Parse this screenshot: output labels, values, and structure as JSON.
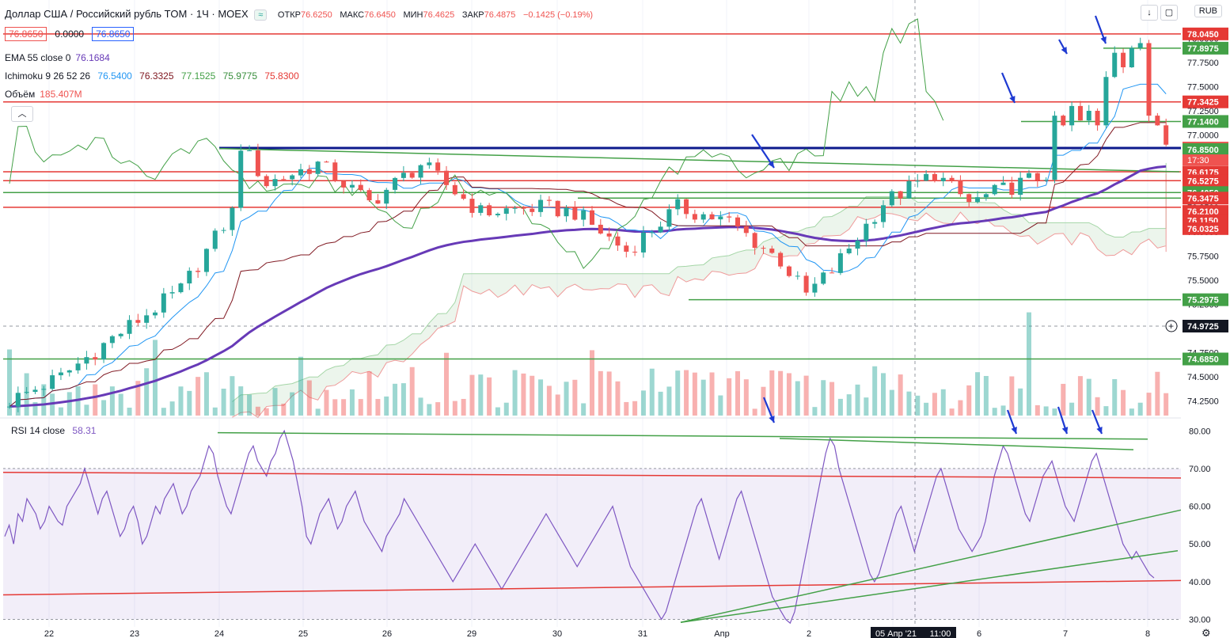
{
  "header": {
    "title": "Доллар США / Российский рубль TOM · 1Ч · MOEX",
    "pill": "≈",
    "open_label": "ОТКР",
    "open": "76.6250",
    "high_label": "МАКС",
    "high": "76.6450",
    "low_label": "МИН",
    "low": "76.4625",
    "close_label": "ЗАКР",
    "close": "76.4875",
    "change": "−0.1425 (−0.19%)"
  },
  "boxes": {
    "bid": "76.8650",
    "spread": "0.0000",
    "ask": "76.8650"
  },
  "indicators": {
    "ema_name": "EMA 55 close 0",
    "ema_value": "76.1684",
    "ichimoku_name": "Ichimoku 9 26 52 26",
    "ichimoku_values": [
      "76.5400",
      "76.3325",
      "77.1525",
      "75.9775",
      "75.8300"
    ],
    "volume_name": "Объём",
    "volume_value": "185.407M"
  },
  "rsi": {
    "name": "RSI 14 close",
    "value": "58.31"
  },
  "currency": "RUB",
  "collapse_icon": "chevron-up-icon",
  "colors": {
    "up": "#26a69a",
    "down": "#ef5350",
    "ema": "#673ab7",
    "rsi": "#7e57c2",
    "arrow": "#1e3ad2",
    "support": "#43a047",
    "resistance": "#e53935",
    "hline": "#0d1a8c"
  },
  "chart_data": [
    {
      "type": "candlestick",
      "price_axis": {
        "ylim": [
          74.1,
          78.15
        ],
        "ticks": [
          "78.0000",
          "77.7500",
          "77.5000",
          "77.2500",
          "77.0000",
          "76.7500",
          "76.5000",
          "76.2500",
          "76.0000",
          "75.7500",
          "75.5000",
          "75.2500",
          "74.7500",
          "74.5000",
          "74.2500"
        ]
      },
      "time_axis": {
        "labels": [
          "22",
          "23",
          "24",
          "25",
          "26",
          "29",
          "30",
          "31",
          "Апр",
          "2",
          "05 Апр '21",
          "11:00",
          "6",
          "7",
          "8"
        ]
      },
      "crosshair_price": "74.9725",
      "countdown": "17:30",
      "price_labels": [
        {
          "value": "78.0450",
          "kind": "res"
        },
        {
          "value": "77.8975",
          "kind": "sup"
        },
        {
          "value": "77.3425",
          "kind": "res"
        },
        {
          "value": "77.1400",
          "kind": "sup"
        },
        {
          "value": "76.8650",
          "kind": "cur"
        },
        {
          "value": "76.8500",
          "kind": "sup"
        },
        {
          "value": "76.6175",
          "kind": "res"
        },
        {
          "value": "76.5275",
          "kind": "res"
        },
        {
          "value": "76.4050",
          "kind": "sup"
        },
        {
          "value": "76.3475",
          "kind": "res"
        },
        {
          "value": "76.2100",
          "kind": "res"
        },
        {
          "value": "76.1150",
          "kind": "res"
        },
        {
          "value": "76.0325",
          "kind": "res"
        },
        {
          "value": "75.2975",
          "kind": "sup"
        },
        {
          "value": "74.6850",
          "kind": "sup"
        }
      ],
      "levels": [
        78.045,
        77.8975,
        77.3425,
        77.14,
        76.865,
        76.62,
        76.5275,
        76.405,
        76.3475,
        76.2525,
        75.2975,
        74.685
      ]
    },
    {
      "type": "line",
      "series": [
        {
          "name": "RSI 14 close"
        }
      ],
      "ylim": [
        28,
        83
      ],
      "ticks": [
        "80.00",
        "70.00",
        "60.00",
        "50.00",
        "40.00",
        "30.00"
      ],
      "values": [
        52,
        55,
        50,
        58,
        56,
        62,
        60,
        58,
        54,
        56,
        60,
        58,
        56,
        55,
        60,
        62,
        64,
        66,
        70,
        66,
        62,
        58,
        62,
        64,
        60,
        56,
        52,
        54,
        58,
        60,
        56,
        50,
        52,
        56,
        60,
        58,
        62,
        64,
        66,
        62,
        58,
        60,
        64,
        66,
        68,
        72,
        76,
        74,
        68,
        64,
        60,
        58,
        62,
        66,
        70,
        74,
        76,
        72,
        70,
        68,
        72,
        74,
        78,
        80,
        76,
        72,
        66,
        60,
        52,
        50,
        54,
        58,
        60,
        62,
        58,
        54,
        56,
        60,
        62,
        64,
        60,
        56,
        54,
        52,
        50,
        48,
        52,
        54,
        56,
        58,
        62,
        60,
        58,
        56,
        54,
        52,
        50,
        48,
        46,
        44,
        42,
        40,
        42,
        44,
        46,
        48,
        50,
        48,
        46,
        44,
        42,
        40,
        38,
        40,
        42,
        44,
        46,
        48,
        50,
        52,
        54,
        56,
        58,
        56,
        54,
        52,
        50,
        48,
        46,
        44,
        46,
        48,
        50,
        52,
        54,
        56,
        58,
        60,
        56,
        52,
        48,
        44,
        42,
        40,
        38,
        36,
        34,
        32,
        30,
        32,
        36,
        40,
        44,
        48,
        52,
        56,
        60,
        62,
        58,
        54,
        50,
        46,
        50,
        54,
        58,
        62,
        64,
        60,
        56,
        52,
        48,
        44,
        40,
        36,
        34,
        32,
        30,
        29,
        32,
        38,
        44,
        50,
        56,
        62,
        68,
        74,
        78,
        76,
        70,
        66,
        62,
        58,
        54,
        50,
        46,
        42,
        40,
        42,
        46,
        50,
        54,
        58,
        60,
        56,
        52,
        48,
        52,
        56,
        60,
        64,
        68,
        70,
        66,
        62,
        58,
        54,
        52,
        50,
        48,
        50,
        52,
        56,
        62,
        68,
        72,
        76,
        74,
        70,
        66,
        62,
        58,
        56,
        60,
        64,
        68,
        70,
        72,
        68,
        64,
        60,
        58,
        56,
        60,
        64,
        68,
        72,
        74,
        70,
        66,
        62,
        58,
        54,
        50,
        48,
        46,
        48,
        46,
        44,
        42,
        41
      ]
    }
  ]
}
